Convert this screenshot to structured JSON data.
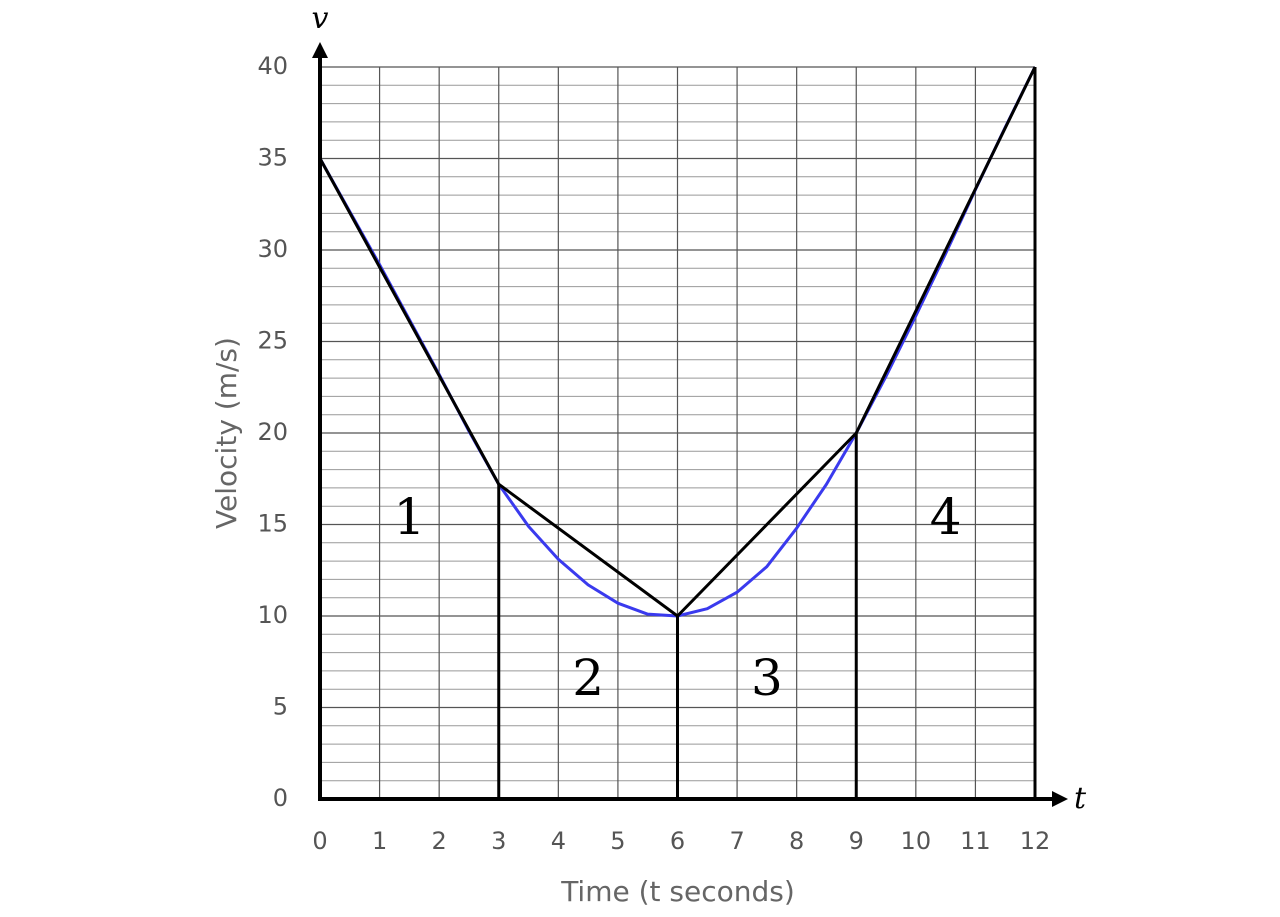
{
  "chart_data": {
    "type": "line",
    "x_label": "Time (t seconds)",
    "y_label": "Velocity (m/s)",
    "x_axis_symbol": "t",
    "y_axis_symbol": "v",
    "xlim": [
      0,
      12
    ],
    "ylim": [
      0,
      40
    ],
    "xticks": [
      0,
      1,
      2,
      3,
      4,
      5,
      6,
      7,
      8,
      9,
      10,
      11,
      12
    ],
    "yticks": [
      0,
      5,
      10,
      15,
      20,
      25,
      30,
      35,
      40
    ],
    "minor_yticks": [
      1,
      2,
      3,
      4,
      6,
      7,
      8,
      9,
      11,
      12,
      13,
      14,
      16,
      17,
      18,
      19,
      21,
      22,
      23,
      24,
      26,
      27,
      28,
      29,
      31,
      32,
      33,
      34,
      36,
      37,
      38,
      39
    ],
    "grid": true,
    "series": [
      {
        "color": "#3a3aee",
        "x": [
          0,
          0.5,
          1,
          1.5,
          2,
          2.5,
          3,
          3.5,
          4,
          4.5,
          5,
          5.5,
          6,
          6.5,
          7,
          7.5,
          8,
          8.5,
          9,
          9.5,
          10,
          10.5,
          11,
          11.5,
          12
        ],
        "values": [
          35,
          32.1,
          29.2,
          26.2,
          23.2,
          20.1,
          17.2,
          14.9,
          13.1,
          11.7,
          10.7,
          10.1,
          10,
          10.4,
          11.3,
          12.7,
          14.8,
          17.2,
          20,
          23.1,
          26.4,
          29.8,
          33.3,
          36.7,
          40
        ]
      },
      {
        "color": "#000000",
        "drop_lines": true,
        "x": [
          0,
          3,
          6,
          9,
          12
        ],
        "values": [
          35,
          17.2,
          10,
          20,
          40
        ]
      }
    ],
    "region_labels": [
      "1",
      "2",
      "3",
      "4"
    ]
  }
}
